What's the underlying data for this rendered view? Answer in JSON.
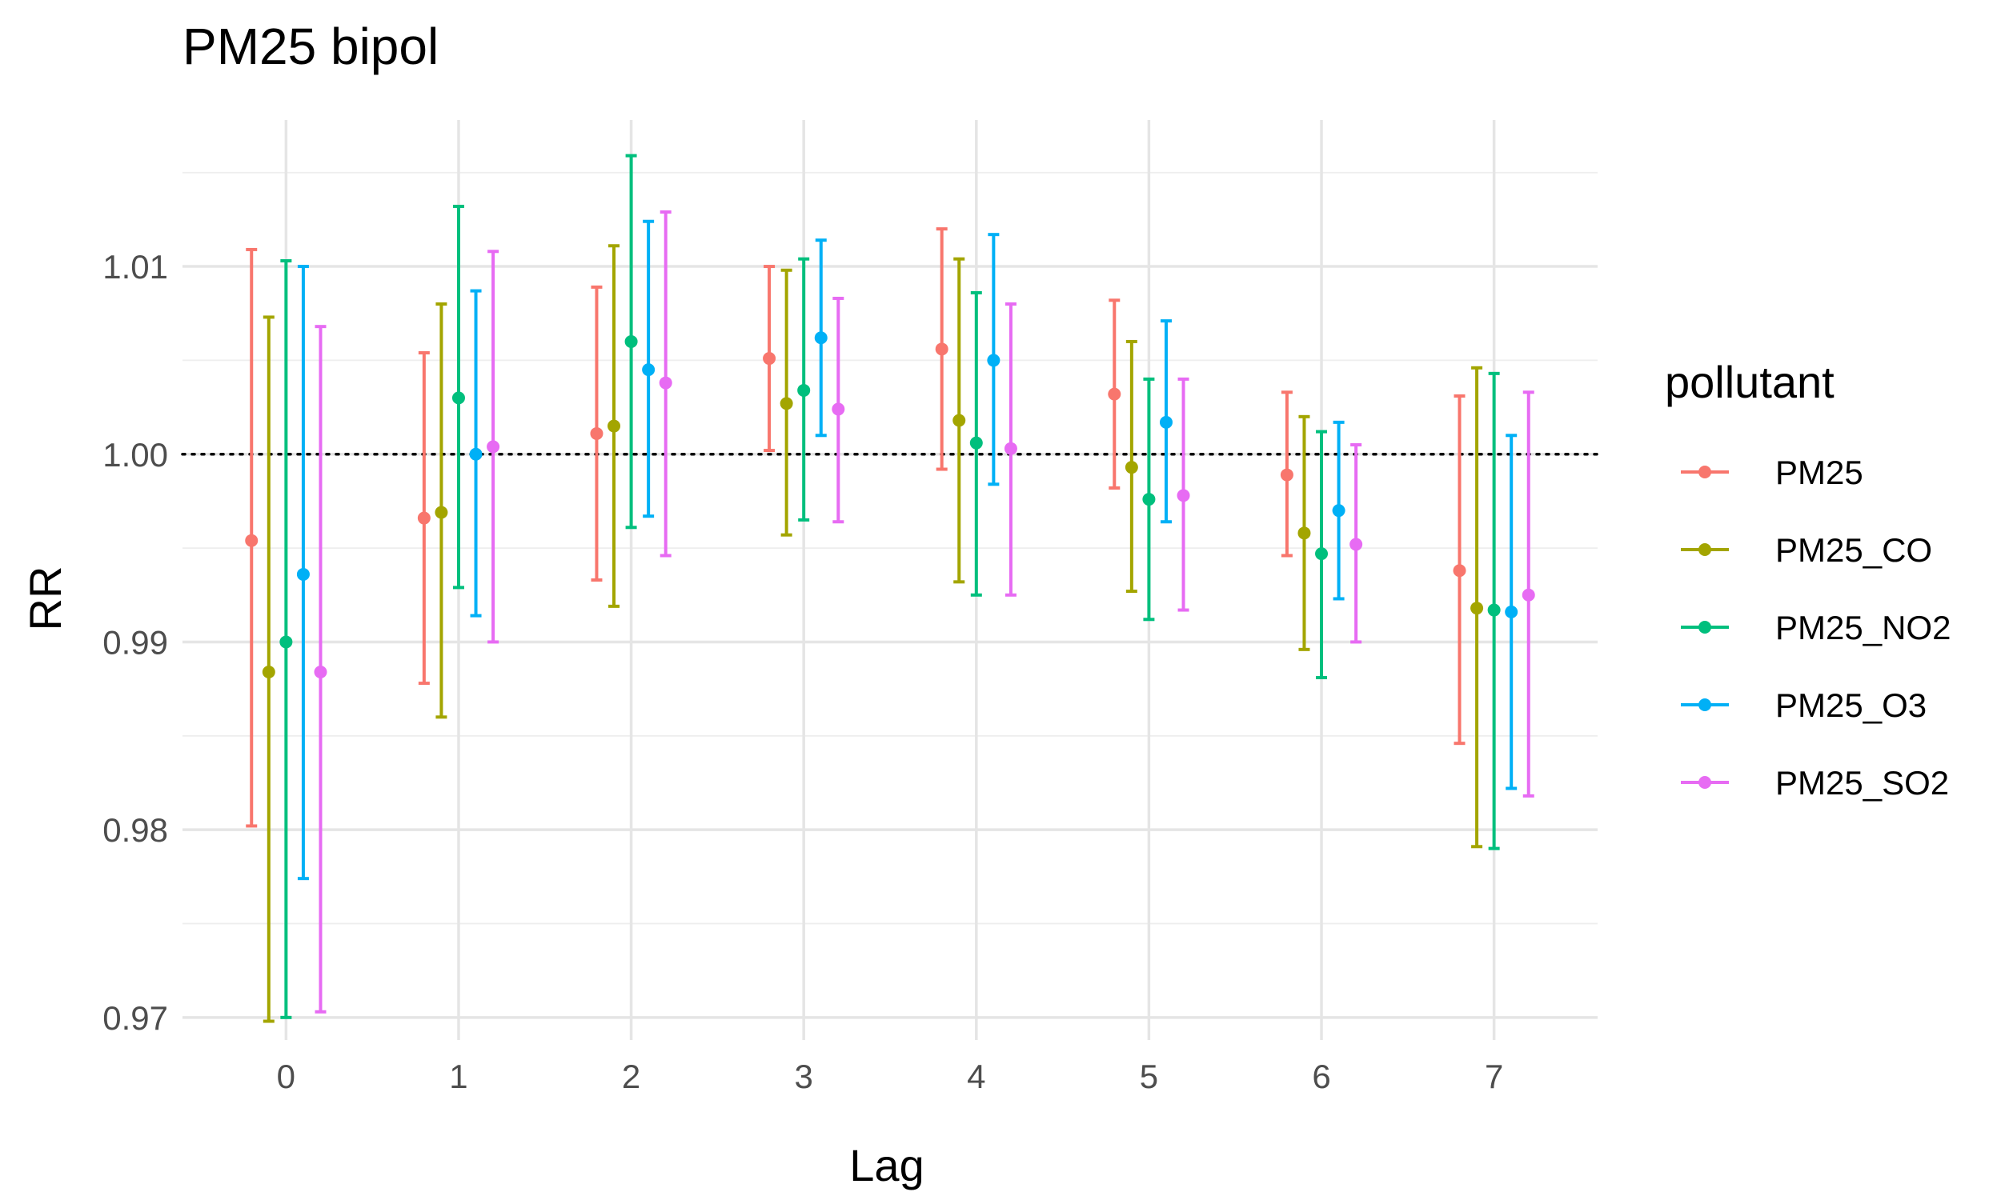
{
  "chart_data": {
    "type": "errorbar",
    "title": "PM25 bipol",
    "xlabel": "Lag",
    "ylabel": "RR",
    "x": [
      0,
      1,
      2,
      3,
      4,
      5,
      6,
      7
    ],
    "x_tick_labels": [
      "0",
      "1",
      "2",
      "3",
      "4",
      "5",
      "6",
      "7"
    ],
    "ylim": [
      0.9688,
      1.0178
    ],
    "y_ticks": [
      0.97,
      0.98,
      0.99,
      1.0,
      1.01
    ],
    "y_tick_labels": [
      "0.97",
      "0.98",
      "0.99",
      "1.00",
      "1.01"
    ],
    "reference_line": 1.0,
    "grid": true,
    "legend": {
      "title": "pollutant",
      "position": "right"
    },
    "series": [
      {
        "name": "PM25",
        "color": "#F8766D",
        "estimate": [
          0.9954,
          0.9966,
          1.0011,
          1.0051,
          1.0056,
          1.0032,
          0.9989,
          0.9938
        ],
        "lower": [
          0.9802,
          0.9878,
          0.9933,
          1.0002,
          0.9992,
          0.9982,
          0.9946,
          0.9846
        ],
        "upper": [
          1.0109,
          1.0054,
          1.0089,
          1.01,
          1.012,
          1.0082,
          1.0033,
          1.0031
        ]
      },
      {
        "name": "PM25_CO",
        "color": "#A3A500",
        "estimate": [
          0.9884,
          0.9969,
          1.0015,
          1.0027,
          1.0018,
          0.9993,
          0.9958,
          0.9918
        ],
        "lower": [
          0.9698,
          0.986,
          0.9919,
          0.9957,
          0.9932,
          0.9927,
          0.9896,
          0.9791
        ],
        "upper": [
          1.0073,
          1.008,
          1.0111,
          1.0098,
          1.0104,
          1.006,
          1.002,
          1.0046
        ]
      },
      {
        "name": "PM25_NO2",
        "color": "#00BF7D",
        "estimate": [
          0.99,
          1.003,
          1.006,
          1.0034,
          1.0006,
          0.9976,
          0.9947,
          0.9917
        ],
        "lower": [
          0.97,
          0.9929,
          0.9961,
          0.9965,
          0.9925,
          0.9912,
          0.9881,
          0.979
        ],
        "upper": [
          1.0103,
          1.0132,
          1.0159,
          1.0104,
          1.0086,
          1.004,
          1.0012,
          1.0043
        ]
      },
      {
        "name": "PM25_O3",
        "color": "#00B0F6",
        "estimate": [
          0.9936,
          1.0,
          1.0045,
          1.0062,
          1.005,
          1.0017,
          0.997,
          0.9916
        ],
        "lower": [
          0.9774,
          0.9914,
          0.9967,
          1.001,
          0.9984,
          0.9964,
          0.9923,
          0.9822
        ],
        "upper": [
          1.01,
          1.0087,
          1.0124,
          1.0114,
          1.0117,
          1.0071,
          1.0017,
          1.001
        ]
      },
      {
        "name": "PM25_SO2",
        "color": "#E76BF3",
        "estimate": [
          0.9884,
          1.0004,
          1.0038,
          1.0024,
          1.0003,
          0.9978,
          0.9952,
          0.9925
        ],
        "lower": [
          0.9703,
          0.99,
          0.9946,
          0.9964,
          0.9925,
          0.9917,
          0.99,
          0.9818
        ],
        "upper": [
          1.0068,
          1.0108,
          1.0129,
          1.0083,
          1.008,
          1.004,
          1.0005,
          1.0033
        ]
      }
    ]
  }
}
